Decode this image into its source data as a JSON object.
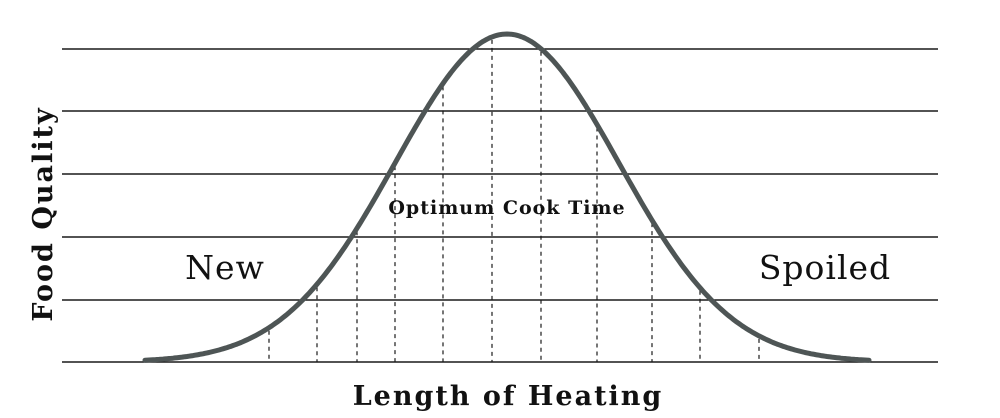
{
  "diagram": {
    "y_axis_label": "Food Quality",
    "x_axis_label": "Length of Heating",
    "left_label": "New",
    "right_label": "Spoiled",
    "peak_label": "Optimum Cook Time",
    "curve_color": "#4e5555",
    "line_color": "#1a1a1a",
    "gridline_count": 6,
    "dashed_marker_count": 13
  }
}
